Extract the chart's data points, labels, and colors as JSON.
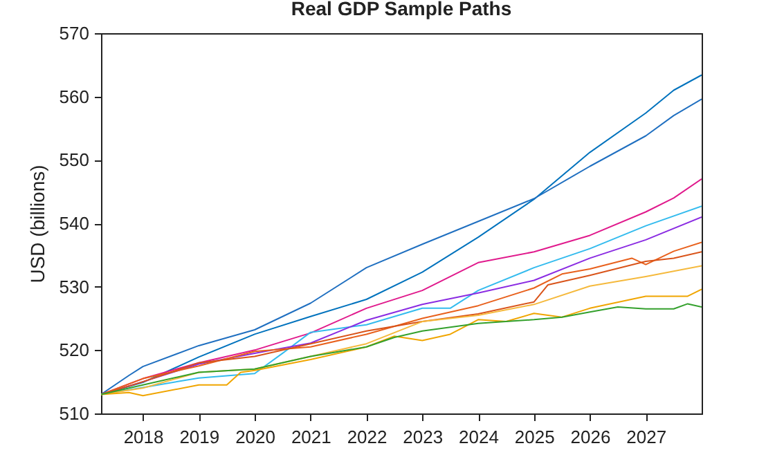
{
  "chart_data": {
    "type": "line",
    "title": "Real GDP Sample Paths",
    "ylabel": "USD (billions)",
    "xlim": [
      2017.25,
      2028
    ],
    "xticks": [
      2018,
      2019,
      2020,
      2021,
      2022,
      2023,
      2024,
      2025,
      2026,
      2027
    ],
    "ylim": [
      510,
      570
    ],
    "yticks": [
      510,
      520,
      530,
      540,
      550,
      560,
      570
    ],
    "grid": false,
    "marker": "none",
    "line_style": "solid",
    "series": [
      {
        "color": "#0072bd",
        "x": [
          2017.25,
          2018,
          2019,
          2020,
          2021,
          2022,
          2023,
          2024,
          2025,
          2026,
          2027,
          2027.5,
          2028
        ],
        "values": [
          513,
          514.9,
          518.9,
          522.5,
          525.3,
          528,
          532.3,
          537.8,
          543.8,
          551.2,
          557.4,
          561,
          563.4
        ]
      },
      {
        "color": "#1f6fc0",
        "x": [
          2017.25,
          2017.75,
          2018,
          2019,
          2020,
          2021,
          2022,
          2023,
          2024,
          2025,
          2026,
          2027,
          2027.5,
          2028
        ],
        "values": [
          513,
          516,
          517.4,
          520.7,
          523.2,
          527.4,
          533,
          536.7,
          540.3,
          543.9,
          549,
          553.8,
          557,
          559.6
        ]
      },
      {
        "color": "#e0198c",
        "x": [
          2017.25,
          2018,
          2019,
          2020,
          2021,
          2022,
          2023,
          2024,
          2025,
          2026,
          2027,
          2027.5,
          2028
        ],
        "values": [
          513,
          515.5,
          518,
          520,
          522.7,
          526.6,
          529.4,
          533.8,
          535.5,
          538.1,
          541.8,
          544,
          547
        ]
      },
      {
        "color": "#33bbee",
        "x": [
          2017.25,
          2018,
          2019,
          2020,
          2020.5,
          2021,
          2022,
          2023,
          2023.5,
          2024,
          2025,
          2026,
          2027,
          2028
        ],
        "values": [
          513,
          514.1,
          515.6,
          516.3,
          519.5,
          522.8,
          524,
          526.6,
          526.6,
          529.4,
          533,
          536,
          539.6,
          542.7
        ]
      },
      {
        "color": "#8a2be2",
        "x": [
          2017.25,
          2018,
          2019,
          2020,
          2021,
          2022,
          2023,
          2024,
          2025,
          2026,
          2027,
          2028
        ],
        "values": [
          513,
          515,
          517.8,
          519.5,
          521.1,
          524.7,
          527.2,
          529,
          531,
          534.5,
          537.4,
          541
        ]
      },
      {
        "color": "#e8601c",
        "x": [
          2017.25,
          2018,
          2019,
          2020,
          2021,
          2022,
          2023,
          2024,
          2025,
          2025.5,
          2026,
          2026.75,
          2027,
          2027.5,
          2028
        ],
        "values": [
          513,
          515.5,
          517.5,
          519.8,
          520.5,
          522.5,
          525,
          527,
          529.8,
          532,
          532.8,
          534.5,
          533.5,
          535.6,
          537
        ]
      },
      {
        "color": "#d95319",
        "x": [
          2017.25,
          2018,
          2019,
          2020,
          2021,
          2022,
          2023,
          2024,
          2025,
          2025.25,
          2026,
          2027,
          2027.5,
          2028
        ],
        "values": [
          513,
          515,
          518,
          519,
          521,
          523,
          524.5,
          525.7,
          527.6,
          530.3,
          531.8,
          534,
          534.5,
          535.5
        ]
      },
      {
        "color": "#f5b93c",
        "x": [
          2017.25,
          2018,
          2019,
          2020,
          2021,
          2022,
          2023,
          2024,
          2025,
          2026,
          2027,
          2028
        ],
        "values": [
          513,
          514,
          516.5,
          517,
          519,
          521,
          524.5,
          525.5,
          527.2,
          530.1,
          531.6,
          533.3
        ]
      },
      {
        "color": "#f0a500",
        "x": [
          2017.25,
          2017.75,
          2018,
          2019,
          2019.5,
          2019.75,
          2020,
          2021,
          2022,
          2022.5,
          2023,
          2023.5,
          2024,
          2024.5,
          2025,
          2025.5,
          2026,
          2027,
          2027.75,
          2028
        ],
        "values": [
          513,
          513.3,
          512.8,
          514.5,
          514.5,
          516.5,
          516.8,
          518.5,
          520.5,
          522.2,
          521.5,
          522.5,
          524.8,
          524.5,
          525.8,
          525.2,
          526.6,
          528.5,
          528.5,
          529.6
        ]
      },
      {
        "color": "#33a02c",
        "x": [
          2017.25,
          2018,
          2019,
          2020,
          2021,
          2022,
          2022.5,
          2023,
          2024,
          2025,
          2025.5,
          2026,
          2026.5,
          2027,
          2027.5,
          2027.75,
          2028
        ],
        "values": [
          513,
          514.5,
          516.5,
          517,
          519,
          520.5,
          522,
          523,
          524.2,
          524.8,
          525.2,
          526,
          526.8,
          526.5,
          526.5,
          527.3,
          526.8
        ]
      }
    ]
  }
}
